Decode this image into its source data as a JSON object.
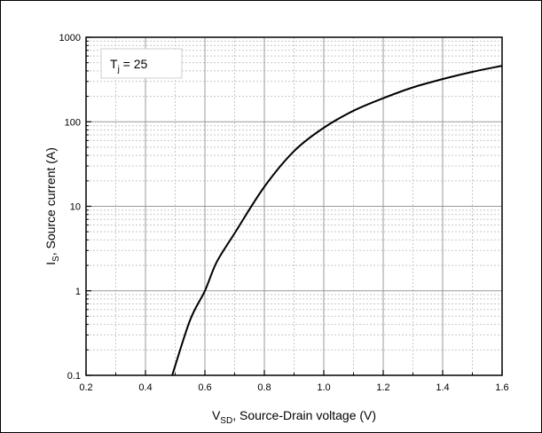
{
  "chart_data": {
    "type": "line",
    "title": "",
    "xlabel": {
      "symbol": "V",
      "subscript": "SD",
      "text": ", Source-Drain voltage (V)"
    },
    "ylabel": {
      "symbol": "I",
      "subscript": "S",
      "text": ", Source current (A)"
    },
    "xlim": [
      0.2,
      1.6
    ],
    "ylim": [
      0.1,
      1000
    ],
    "yscale": "log",
    "grid": true,
    "x_ticks": [
      "0.2",
      "0.4",
      "0.6",
      "0.8",
      "1.0",
      "1.2",
      "1.4",
      "1.6"
    ],
    "y_ticks": [
      "0.1",
      "1",
      "10",
      "100",
      "1000"
    ],
    "annotation": {
      "symbol": "T",
      "subscript": "j",
      "text": " =  25"
    },
    "series": [
      {
        "color": "#000000",
        "x": [
          0.49,
          0.55,
          0.6,
          0.64,
          0.7,
          0.8,
          0.9,
          1.0,
          1.1,
          1.2,
          1.3,
          1.4,
          1.5,
          1.6
        ],
        "y": [
          0.1,
          0.45,
          1.0,
          2.2,
          4.8,
          17,
          45,
          85,
          135,
          190,
          255,
          320,
          390,
          460
        ]
      }
    ]
  }
}
